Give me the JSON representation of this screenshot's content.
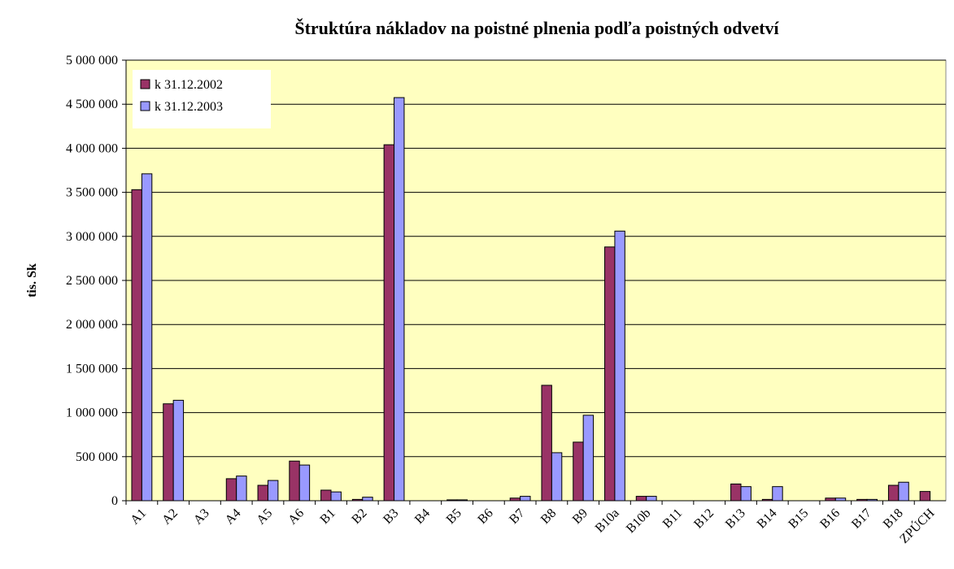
{
  "chart_data": {
    "type": "bar",
    "title": "Štruktúra nákladov na poistné plnenia podľa poistných odvetví",
    "y_label": "tis. Sk",
    "categories": [
      "A1",
      "A2",
      "A3",
      "A4",
      "A5",
      "A6",
      "B1",
      "B2",
      "B3",
      "B4",
      "B5",
      "B6",
      "B7",
      "B8",
      "B9",
      "B10a",
      "B10b",
      "B11",
      "B12",
      "B13",
      "B14",
      "B15",
      "B16",
      "B17",
      "B18",
      "ZPÚCH"
    ],
    "series": [
      {
        "name": "k 31.12.2002",
        "color": "#993366",
        "values": [
          3530000,
          1100000,
          0,
          250000,
          175000,
          450000,
          120000,
          15000,
          4040000,
          0,
          10000,
          0,
          30000,
          1310000,
          665000,
          2880000,
          50000,
          0,
          0,
          190000,
          15000,
          0,
          30000,
          15000,
          175000,
          105000
        ]
      },
      {
        "name": "k 31.12.2003",
        "color": "#9999ff",
        "values": [
          3710000,
          1140000,
          0,
          280000,
          230000,
          405000,
          100000,
          40000,
          4575000,
          0,
          10000,
          0,
          50000,
          545000,
          970000,
          3060000,
          50000,
          0,
          0,
          160000,
          160000,
          0,
          30000,
          15000,
          210000,
          0
        ]
      }
    ],
    "ylim": [
      0,
      5000000
    ],
    "yticks": [
      0,
      {
        "value": 500000,
        "label": "500 000"
      },
      {
        "value": 1000000,
        "label": "1 000 000"
      },
      {
        "value": 1500000,
        "label": "1 500 000"
      },
      {
        "value": 2000000,
        "label": "2 000 000"
      },
      {
        "value": 2500000,
        "label": "2 500 000"
      },
      {
        "value": 3000000,
        "label": "3 000 000"
      },
      {
        "value": 3500000,
        "label": "3 500 000"
      },
      {
        "value": 4000000,
        "label": "4 000 000"
      },
      {
        "value": 4500000,
        "label": "4 500 000"
      },
      {
        "value": 5000000,
        "label": "5 000 000"
      }
    ],
    "grid": true,
    "plot_background": "#ffffc0",
    "legend": "top-left"
  }
}
